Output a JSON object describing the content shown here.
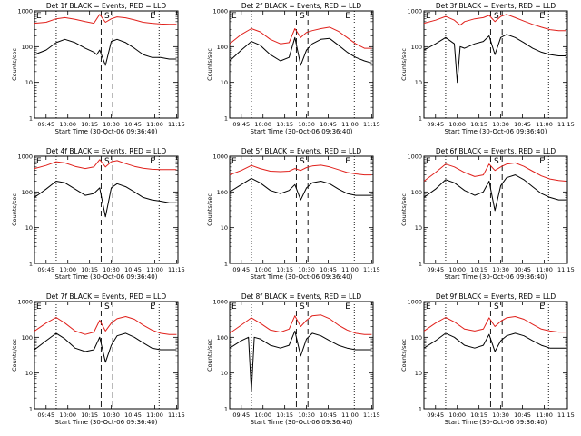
{
  "colors": {
    "events": "#000000",
    "lld": "#e0201b"
  },
  "x_ticks": [
    "09:45",
    "10:00",
    "10:15",
    "10:30",
    "10:45",
    "11:00",
    "11:15"
  ],
  "y_ticks": [
    "1",
    "10",
    "100",
    "1000"
  ],
  "markers": {
    "left": "E",
    "middle": "S",
    "right": "E"
  },
  "chart_data": [
    {
      "type": "line",
      "title": "Det 1f BLACK = Events, RED = LLD",
      "xlabel": "Start Time (30-Oct-06 09:36:40)",
      "ylabel": "Counts/sec",
      "xlim": [
        "09:37",
        "11:16"
      ],
      "ylim": [
        1,
        1000
      ],
      "log_y": true,
      "vlines_dotted": [
        "09:52",
        "11:03"
      ],
      "vlines_dashed": [
        "10:23",
        "10:31"
      ],
      "series": [
        {
          "name": "Events",
          "x": [
            "09:37",
            "09:45",
            "09:52",
            "09:58",
            "10:05",
            "10:12",
            "10:18",
            "10:20",
            "10:22",
            "10:26",
            "10:30",
            "10:34",
            "10:40",
            "10:46",
            "10:52",
            "10:58",
            "11:04",
            "11:10",
            "11:15"
          ],
          "y": [
            60,
            80,
            130,
            160,
            130,
            90,
            70,
            60,
            80,
            30,
            140,
            160,
            130,
            90,
            60,
            50,
            50,
            45,
            45
          ]
        },
        {
          "name": "LLD",
          "x": [
            "09:37",
            "09:45",
            "09:52",
            "09:58",
            "10:05",
            "10:12",
            "10:18",
            "10:22",
            "10:26",
            "10:30",
            "10:34",
            "10:40",
            "10:46",
            "10:52",
            "10:58",
            "11:04",
            "11:10",
            "11:15"
          ],
          "y": [
            450,
            480,
            600,
            650,
            580,
            500,
            450,
            800,
            480,
            600,
            680,
            640,
            560,
            480,
            450,
            430,
            420,
            420
          ]
        }
      ]
    },
    {
      "type": "line",
      "title": "Det 2f BLACK = Events, RED = LLD",
      "xlabel": "Start Time (30-Oct-06 09:36:40)",
      "ylabel": "Counts/sec",
      "xlim": [
        "09:37",
        "11:16"
      ],
      "ylim": [
        1,
        1000
      ],
      "log_y": true,
      "vlines_dotted": [
        "09:52",
        "11:03"
      ],
      "vlines_dashed": [
        "10:23",
        "10:31"
      ],
      "series": [
        {
          "name": "Events",
          "x": [
            "09:37",
            "09:45",
            "09:52",
            "09:58",
            "10:05",
            "10:12",
            "10:18",
            "10:22",
            "10:26",
            "10:30",
            "10:34",
            "10:40",
            "10:46",
            "10:52",
            "10:58",
            "11:04",
            "11:10",
            "11:15"
          ],
          "y": [
            40,
            80,
            140,
            110,
            60,
            40,
            50,
            180,
            30,
            80,
            120,
            160,
            170,
            110,
            70,
            50,
            40,
            35
          ]
        },
        {
          "name": "LLD",
          "x": [
            "09:37",
            "09:45",
            "09:52",
            "09:58",
            "10:05",
            "10:12",
            "10:18",
            "10:22",
            "10:26",
            "10:30",
            "10:34",
            "10:40",
            "10:46",
            "10:52",
            "10:58",
            "11:04",
            "11:10",
            "11:15"
          ],
          "y": [
            120,
            220,
            320,
            260,
            160,
            120,
            130,
            320,
            180,
            250,
            280,
            320,
            350,
            270,
            180,
            120,
            90,
            90
          ]
        }
      ]
    },
    {
      "type": "line",
      "title": "Det 3f BLACK = Events, RED = LLD",
      "xlabel": "Start Time (30-Oct-06 09:36:40)",
      "ylabel": "Counts/sec",
      "xlim": [
        "09:37",
        "11:16"
      ],
      "ylim": [
        1,
        1000
      ],
      "log_y": true,
      "vlines_dotted": [
        "09:52",
        "11:03"
      ],
      "vlines_dashed": [
        "10:23",
        "10:31"
      ],
      "series": [
        {
          "name": "Events",
          "x": [
            "09:37",
            "09:45",
            "09:52",
            "09:58",
            "10:00",
            "10:02",
            "10:05",
            "10:12",
            "10:18",
            "10:22",
            "10:26",
            "10:30",
            "10:34",
            "10:40",
            "10:46",
            "10:52",
            "10:58",
            "11:04",
            "11:10",
            "11:15"
          ],
          "y": [
            80,
            120,
            180,
            120,
            10,
            100,
            90,
            120,
            140,
            200,
            60,
            180,
            220,
            180,
            130,
            90,
            70,
            60,
            55,
            55
          ]
        },
        {
          "name": "LLD",
          "x": [
            "09:37",
            "09:45",
            "09:52",
            "09:58",
            "10:02",
            "10:05",
            "10:12",
            "10:18",
            "10:22",
            "10:26",
            "10:30",
            "10:34",
            "10:40",
            "10:46",
            "10:52",
            "10:58",
            "11:04",
            "11:10",
            "11:15"
          ],
          "y": [
            450,
            550,
            700,
            550,
            400,
            500,
            600,
            650,
            750,
            500,
            700,
            800,
            650,
            520,
            420,
            350,
            300,
            280,
            280
          ]
        }
      ]
    },
    {
      "type": "line",
      "title": "Det 4f BLACK = Events, RED = LLD",
      "xlabel": "Start Time (30-Oct-06 09:36:40)",
      "ylabel": "Counts/sec",
      "xlim": [
        "09:37",
        "11:16"
      ],
      "ylim": [
        1,
        1000
      ],
      "log_y": true,
      "vlines_dotted": [
        "09:52",
        "11:03"
      ],
      "vlines_dashed": [
        "10:23",
        "10:31"
      ],
      "series": [
        {
          "name": "Events",
          "x": [
            "09:37",
            "09:45",
            "09:52",
            "09:58",
            "10:05",
            "10:12",
            "10:18",
            "10:22",
            "10:26",
            "10:30",
            "10:34",
            "10:40",
            "10:46",
            "10:52",
            "10:58",
            "11:04",
            "11:10",
            "11:15"
          ],
          "y": [
            70,
            120,
            200,
            180,
            120,
            80,
            90,
            130,
            20,
            130,
            170,
            140,
            100,
            70,
            60,
            55,
            50,
            50
          ]
        },
        {
          "name": "LLD",
          "x": [
            "09:37",
            "09:45",
            "09:52",
            "09:58",
            "10:05",
            "10:12",
            "10:18",
            "10:22",
            "10:26",
            "10:30",
            "10:34",
            "10:40",
            "10:46",
            "10:52",
            "10:58",
            "11:04",
            "11:10",
            "11:15"
          ],
          "y": [
            450,
            550,
            700,
            650,
            520,
            450,
            500,
            800,
            500,
            700,
            750,
            620,
            520,
            460,
            430,
            420,
            420,
            420
          ]
        }
      ]
    },
    {
      "type": "line",
      "title": "Det 5f BLACK = Events, RED = LLD",
      "xlabel": "Start Time (30-Oct-06 09:36:40)",
      "ylabel": "Counts/sec",
      "xlim": [
        "09:37",
        "11:16"
      ],
      "ylim": [
        1,
        1000
      ],
      "log_y": true,
      "vlines_dotted": [
        "09:52",
        "11:03"
      ],
      "vlines_dashed": [
        "10:23",
        "10:31"
      ],
      "series": [
        {
          "name": "Events",
          "x": [
            "09:37",
            "09:45",
            "09:52",
            "09:58",
            "10:05",
            "10:12",
            "10:18",
            "10:22",
            "10:26",
            "10:30",
            "10:34",
            "10:40",
            "10:46",
            "10:52",
            "10:58",
            "11:04",
            "11:10",
            "11:15"
          ],
          "y": [
            100,
            160,
            240,
            180,
            110,
            90,
            110,
            160,
            60,
            130,
            180,
            200,
            170,
            120,
            90,
            80,
            80,
            80
          ]
        },
        {
          "name": "LLD",
          "x": [
            "09:37",
            "09:45",
            "09:52",
            "09:58",
            "10:05",
            "10:12",
            "10:18",
            "10:22",
            "10:26",
            "10:30",
            "10:34",
            "10:40",
            "10:46",
            "10:52",
            "10:58",
            "11:04",
            "11:10",
            "11:15"
          ],
          "y": [
            300,
            400,
            550,
            450,
            380,
            370,
            380,
            450,
            400,
            480,
            530,
            560,
            500,
            420,
            350,
            320,
            300,
            300
          ]
        }
      ]
    },
    {
      "type": "line",
      "title": "Det 6f BLACK = Events, RED = LLD",
      "xlabel": "Start Time (30-Oct-06 09:36:40)",
      "ylabel": "Counts/sec",
      "xlim": [
        "09:37",
        "11:16"
      ],
      "ylim": [
        1,
        1000
      ],
      "log_y": true,
      "vlines_dotted": [
        "09:52",
        "11:03"
      ],
      "vlines_dashed": [
        "10:23",
        "10:31"
      ],
      "series": [
        {
          "name": "Events",
          "x": [
            "09:37",
            "09:45",
            "09:52",
            "09:58",
            "10:05",
            "10:12",
            "10:18",
            "10:22",
            "10:26",
            "10:30",
            "10:34",
            "10:40",
            "10:46",
            "10:52",
            "10:58",
            "11:04",
            "11:10",
            "11:15"
          ],
          "y": [
            70,
            120,
            220,
            180,
            110,
            80,
            100,
            200,
            30,
            150,
            250,
            300,
            220,
            140,
            90,
            70,
            60,
            60
          ]
        },
        {
          "name": "LLD",
          "x": [
            "09:37",
            "09:45",
            "09:52",
            "09:58",
            "10:05",
            "10:12",
            "10:18",
            "10:22",
            "10:26",
            "10:30",
            "10:34",
            "10:40",
            "10:46",
            "10:52",
            "10:58",
            "11:04",
            "11:10",
            "11:15"
          ],
          "y": [
            200,
            350,
            600,
            500,
            350,
            270,
            300,
            600,
            400,
            500,
            600,
            650,
            520,
            380,
            280,
            230,
            210,
            200
          ]
        }
      ]
    },
    {
      "type": "line",
      "title": "Det 7f BLACK = Events, RED = LLD",
      "xlabel": "Start Time (30-Oct-06 09:36:40)",
      "ylabel": "Counts/sec",
      "xlim": [
        "09:37",
        "11:16"
      ],
      "ylim": [
        1,
        1000
      ],
      "log_y": true,
      "vlines_dotted": [
        "09:52",
        "11:03"
      ],
      "vlines_dashed": [
        "10:23",
        "10:31"
      ],
      "series": [
        {
          "name": "Events",
          "x": [
            "09:37",
            "09:45",
            "09:52",
            "09:58",
            "10:05",
            "10:12",
            "10:18",
            "10:22",
            "10:26",
            "10:30",
            "10:34",
            "10:40",
            "10:46",
            "10:52",
            "10:58",
            "11:04",
            "11:10",
            "11:15"
          ],
          "y": [
            45,
            80,
            130,
            90,
            50,
            40,
            45,
            100,
            20,
            60,
            110,
            130,
            100,
            70,
            50,
            45,
            45,
            45
          ]
        },
        {
          "name": "LLD",
          "x": [
            "09:37",
            "09:45",
            "09:52",
            "09:58",
            "10:05",
            "10:12",
            "10:18",
            "10:22",
            "10:26",
            "10:30",
            "10:34",
            "10:40",
            "10:46",
            "10:52",
            "10:58",
            "11:04",
            "11:10",
            "11:15"
          ],
          "y": [
            150,
            250,
            360,
            250,
            150,
            120,
            140,
            300,
            150,
            250,
            330,
            380,
            320,
            220,
            160,
            130,
            120,
            120
          ]
        }
      ]
    },
    {
      "type": "line",
      "title": "Det 8f BLACK = Events, RED = LLD",
      "xlabel": "Start Time (30-Oct-06 09:36:40)",
      "ylabel": "Counts/sec",
      "xlim": [
        "09:37",
        "11:16"
      ],
      "ylim": [
        1,
        1000
      ],
      "log_y": true,
      "vlines_dotted": [
        "09:52",
        "11:03"
      ],
      "vlines_dashed": [
        "10:23",
        "10:31"
      ],
      "series": [
        {
          "name": "Events",
          "x": [
            "09:37",
            "09:45",
            "09:50",
            "09:52",
            "09:54",
            "09:58",
            "10:05",
            "10:12",
            "10:18",
            "10:22",
            "10:26",
            "10:30",
            "10:34",
            "10:40",
            "10:46",
            "10:52",
            "10:58",
            "11:04",
            "11:10",
            "11:15"
          ],
          "y": [
            50,
            80,
            100,
            3,
            100,
            90,
            60,
            50,
            60,
            150,
            30,
            90,
            130,
            110,
            80,
            60,
            50,
            45,
            45,
            45
          ]
        },
        {
          "name": "LLD",
          "x": [
            "09:37",
            "09:45",
            "09:52",
            "09:58",
            "10:05",
            "10:12",
            "10:18",
            "10:22",
            "10:26",
            "10:30",
            "10:34",
            "10:40",
            "10:46",
            "10:52",
            "10:58",
            "11:04",
            "11:10",
            "11:15"
          ],
          "y": [
            130,
            220,
            350,
            250,
            160,
            140,
            170,
            400,
            200,
            300,
            400,
            420,
            330,
            220,
            160,
            130,
            120,
            120
          ]
        }
      ]
    },
    {
      "type": "line",
      "title": "Det 9f BLACK = Events, RED = LLD",
      "xlabel": "Start Time (30-Oct-06 09:36:40)",
      "ylabel": "Counts/sec",
      "xlim": [
        "09:37",
        "11:16"
      ],
      "ylim": [
        1,
        1000
      ],
      "log_y": true,
      "vlines_dotted": [
        "09:52",
        "11:03"
      ],
      "vlines_dashed": [
        "10:23",
        "10:31"
      ],
      "series": [
        {
          "name": "Events",
          "x": [
            "09:37",
            "09:45",
            "09:52",
            "09:58",
            "10:05",
            "10:12",
            "10:18",
            "10:22",
            "10:26",
            "10:30",
            "10:34",
            "10:40",
            "10:46",
            "10:52",
            "10:58",
            "11:04",
            "11:10",
            "11:15"
          ],
          "y": [
            50,
            80,
            130,
            100,
            60,
            50,
            60,
            120,
            40,
            80,
            110,
            130,
            110,
            80,
            60,
            50,
            50,
            50
          ]
        },
        {
          "name": "LLD",
          "x": [
            "09:37",
            "09:45",
            "09:52",
            "09:58",
            "10:05",
            "10:12",
            "10:18",
            "10:22",
            "10:26",
            "10:30",
            "10:34",
            "10:40",
            "10:46",
            "10:52",
            "10:58",
            "11:04",
            "11:10",
            "11:15"
          ],
          "y": [
            150,
            250,
            360,
            270,
            170,
            150,
            170,
            350,
            200,
            280,
            350,
            380,
            320,
            230,
            170,
            150,
            140,
            140
          ]
        }
      ]
    }
  ]
}
